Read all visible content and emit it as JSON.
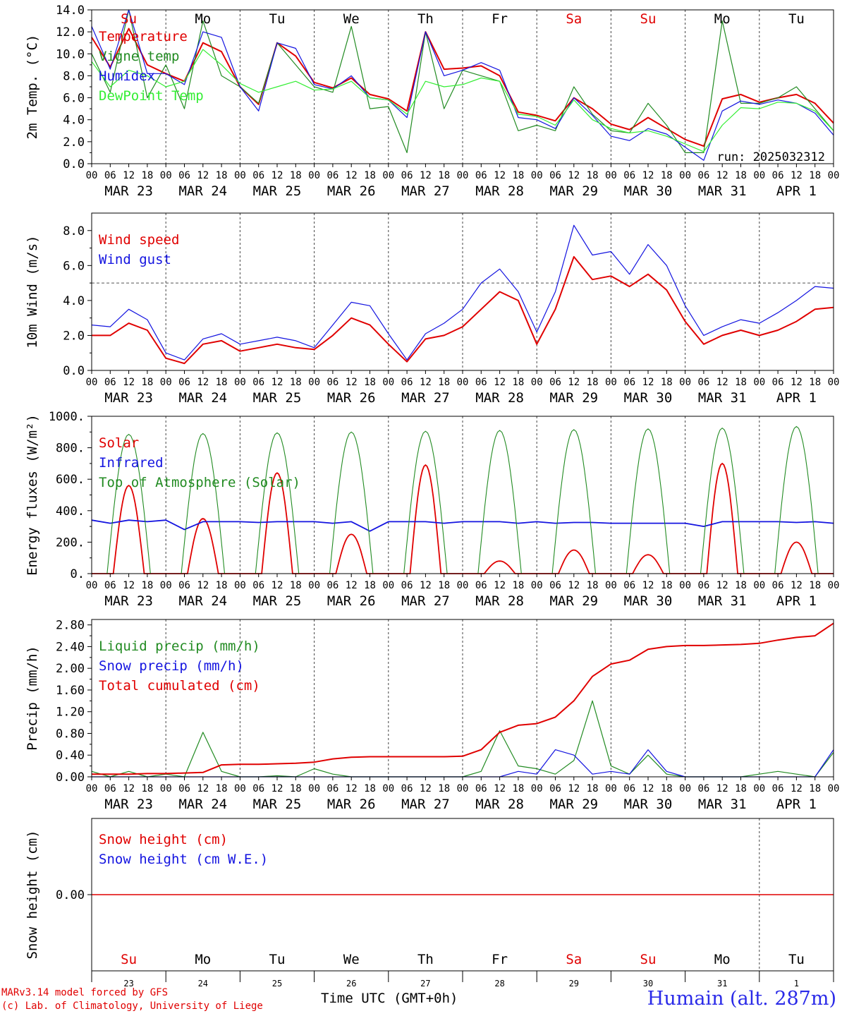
{
  "colors": {
    "red": "#e00000",
    "green": "#228b22",
    "blue": "#1414e0",
    "lightgreen": "#33ee33",
    "black": "#000000",
    "dayblack": "#000000"
  },
  "x_axis": {
    "tick_labels": [
      "00",
      "06",
      "12",
      "18",
      "00",
      "06",
      "12",
      "18",
      "00",
      "06",
      "12",
      "18",
      "00",
      "06",
      "12",
      "18",
      "00",
      "06",
      "12",
      "18",
      "00",
      "06",
      "12",
      "18",
      "00",
      "06",
      "12",
      "18",
      "00",
      "06",
      "12",
      "18",
      "00",
      "06",
      "12",
      "18",
      "00",
      "06",
      "12",
      "18",
      "00"
    ],
    "date_labels": [
      "MAR 23",
      "MAR 24",
      "MAR 25",
      "MAR 26",
      "MAR 27",
      "MAR 28",
      "MAR 29",
      "MAR 30",
      "MAR 31",
      "APR  1"
    ]
  },
  "weekdays": [
    {
      "label": "Su",
      "color": "red"
    },
    {
      "label": "Mo",
      "color": "black"
    },
    {
      "label": "Tu",
      "color": "black"
    },
    {
      "label": "We",
      "color": "black"
    },
    {
      "label": "Th",
      "color": "black"
    },
    {
      "label": "Fr",
      "color": "black"
    },
    {
      "label": "Sa",
      "color": "red"
    },
    {
      "label": "Su",
      "color": "red"
    },
    {
      "label": "Mo",
      "color": "black"
    },
    {
      "label": "Tu",
      "color": "black"
    }
  ],
  "day_numbers": [
    "23",
    "24",
    "25",
    "26",
    "27",
    "28",
    "29",
    "30",
    "31",
    "1"
  ],
  "chart_data": [
    {
      "type": "line",
      "ylabel": "2m Temp. (°C)",
      "ylim": [
        0,
        14
      ],
      "yticks": [
        "0.0",
        "2.0",
        "4.0",
        "6.0",
        "8.0",
        "10.0",
        "12.0",
        "14.0"
      ],
      "ref_line": 0,
      "annotation": "run: 2025032312",
      "x": [
        0,
        6,
        12,
        18,
        24,
        30,
        36,
        42,
        48,
        54,
        60,
        66,
        72,
        78,
        84,
        90,
        96,
        102,
        108,
        114,
        120,
        126,
        132,
        138,
        144,
        150,
        156,
        162,
        168,
        174,
        180,
        186,
        192,
        198,
        204,
        210,
        216,
        222,
        228,
        234,
        240
      ],
      "series": [
        {
          "name": "Temperature",
          "color": "red",
          "values": [
            11.5,
            8.8,
            12.3,
            9.0,
            8.2,
            7.5,
            11.0,
            10.2,
            7.0,
            5.4,
            11.0,
            9.8,
            7.4,
            6.9,
            7.8,
            6.3,
            5.9,
            4.8,
            12.0,
            8.6,
            8.7,
            8.9,
            8.0,
            4.7,
            4.4,
            3.9,
            6.0,
            5.0,
            3.6,
            3.1,
            4.2,
            3.2,
            2.2,
            1.6,
            5.9,
            6.3,
            5.6,
            6.0,
            6.3,
            5.5,
            3.7
          ]
        },
        {
          "name": "Vigne temp",
          "color": "green",
          "values": [
            10.0,
            6.5,
            14.0,
            6.0,
            9.0,
            5.0,
            13.0,
            8.0,
            7.0,
            5.5,
            11.0,
            9.0,
            7.0,
            6.5,
            12.5,
            5.0,
            5.2,
            1.0,
            12.0,
            5.0,
            8.5,
            8.0,
            7.5,
            3.0,
            3.5,
            3.0,
            7.0,
            4.5,
            3.0,
            2.8,
            5.5,
            3.5,
            1.0,
            1.0,
            13.0,
            5.5,
            5.5,
            6.0,
            7.0,
            5.0,
            3.0
          ]
        },
        {
          "name": "Humidex",
          "color": "blue",
          "values": [
            12.5,
            8.6,
            14.0,
            8.2,
            8.2,
            7.2,
            12.0,
            11.5,
            7.0,
            4.8,
            11.0,
            10.5,
            7.2,
            6.8,
            8.0,
            6.0,
            5.8,
            4.2,
            12.0,
            8.0,
            8.5,
            9.2,
            8.5,
            4.2,
            4.0,
            3.2,
            6.0,
            4.4,
            2.5,
            2.1,
            3.2,
            2.7,
            1.5,
            0.3,
            4.8,
            5.7,
            5.4,
            5.8,
            5.5,
            4.6,
            2.6
          ]
        },
        {
          "name": "DewPoint Temp",
          "color": "lightgreen",
          "values": [
            9.3,
            7.0,
            8.5,
            8.0,
            7.0,
            7.5,
            10.4,
            9.0,
            7.3,
            6.5,
            7.0,
            7.5,
            6.7,
            6.8,
            7.5,
            6.0,
            5.8,
            4.5,
            7.5,
            7.0,
            7.2,
            7.8,
            7.5,
            4.5,
            4.3,
            3.5,
            5.8,
            4.0,
            3.2,
            2.8,
            3.0,
            2.5,
            1.8,
            1.1,
            3.5,
            5.1,
            5.0,
            5.6,
            5.5,
            4.8,
            3.0
          ]
        }
      ]
    },
    {
      "type": "line",
      "ylabel": "10m Wind (m/s)",
      "ylim": [
        0,
        9
      ],
      "yticks": [
        "0.0",
        "2.0",
        "4.0",
        "6.0",
        "8.0"
      ],
      "ref_line": 5,
      "x": [
        0,
        6,
        12,
        18,
        24,
        30,
        36,
        42,
        48,
        54,
        60,
        66,
        72,
        78,
        84,
        90,
        96,
        102,
        108,
        114,
        120,
        126,
        132,
        138,
        144,
        150,
        156,
        162,
        168,
        174,
        180,
        186,
        192,
        198,
        204,
        210,
        216,
        222,
        228,
        234,
        240
      ],
      "series": [
        {
          "name": "Wind speed",
          "color": "red",
          "values": [
            2.0,
            2.0,
            2.7,
            2.3,
            0.7,
            0.4,
            1.5,
            1.7,
            1.1,
            1.3,
            1.5,
            1.3,
            1.2,
            2.0,
            3.0,
            2.6,
            1.5,
            0.5,
            1.8,
            2.0,
            2.5,
            3.5,
            4.5,
            4.0,
            1.5,
            3.5,
            6.5,
            5.2,
            5.4,
            4.8,
            5.5,
            4.6,
            2.8,
            1.5,
            2.0,
            2.3,
            2.0,
            2.3,
            2.8,
            3.5,
            3.6
          ]
        },
        {
          "name": "Wind gust",
          "color": "blue",
          "values": [
            2.6,
            2.5,
            3.5,
            2.9,
            1.0,
            0.6,
            1.8,
            2.1,
            1.5,
            1.7,
            1.9,
            1.7,
            1.3,
            2.6,
            3.9,
            3.7,
            2.1,
            0.6,
            2.1,
            2.7,
            3.5,
            5.0,
            5.8,
            4.5,
            2.2,
            4.5,
            8.3,
            6.6,
            6.8,
            5.5,
            7.2,
            6.0,
            3.7,
            2.0,
            2.5,
            2.9,
            2.7,
            3.3,
            4.0,
            4.8,
            4.7
          ]
        }
      ]
    },
    {
      "type": "line",
      "ylabel": "Energy fluxes (W/m²)",
      "ylim": [
        0,
        1000
      ],
      "yticks": [
        "0.",
        "200.",
        "400.",
        "600.",
        "800.",
        "1000."
      ],
      "series": [
        {
          "name": "Solar",
          "color": "red",
          "peaks": [
            560,
            350,
            640,
            250,
            690,
            80,
            150,
            120,
            700,
            200
          ]
        },
        {
          "name": "Infrared",
          "color": "blue",
          "values": [
            340,
            320,
            340,
            330,
            340,
            280,
            330,
            330,
            330,
            325,
            330,
            330,
            330,
            320,
            330,
            270,
            330,
            330,
            330,
            320,
            330,
            330,
            330,
            320,
            330,
            320,
            325,
            325,
            320,
            320,
            320,
            320,
            320,
            300,
            330,
            330,
            330,
            330,
            325,
            330,
            320
          ]
        },
        {
          "name": "Top of Atmosphere (Solar)",
          "color": "green",
          "peaks": [
            885,
            890,
            895,
            900,
            905,
            910,
            915,
            920,
            925,
            935
          ]
        }
      ]
    },
    {
      "type": "line",
      "ylabel": "Precip (mm/h)",
      "ylim": [
        0,
        2.9
      ],
      "yticks": [
        "0.00",
        "0.40",
        "0.80",
        "1.20",
        "1.60",
        "2.00",
        "2.40",
        "2.80"
      ],
      "x": [
        0,
        6,
        12,
        18,
        24,
        30,
        36,
        42,
        48,
        54,
        60,
        66,
        72,
        78,
        84,
        90,
        96,
        102,
        108,
        114,
        120,
        126,
        132,
        138,
        144,
        150,
        156,
        162,
        168,
        174,
        180,
        186,
        192,
        198,
        204,
        210,
        216,
        222,
        228,
        234,
        240
      ],
      "series": [
        {
          "name": "Liquid precip (mm/h)",
          "color": "green",
          "values": [
            0.1,
            0,
            0.1,
            0,
            0.05,
            0,
            0.82,
            0.1,
            0,
            0,
            0.02,
            0,
            0.15,
            0.05,
            0,
            0,
            0,
            0,
            0,
            0,
            0,
            0.1,
            0.85,
            0.2,
            0.15,
            0.05,
            0.3,
            1.4,
            0.2,
            0.05,
            0.4,
            0.05,
            0,
            0,
            0,
            0,
            0.05,
            0.1,
            0.05,
            0,
            0.45
          ]
        },
        {
          "name": "Snow precip (mm/h)",
          "color": "blue",
          "values": [
            0,
            0,
            0,
            0,
            0,
            0,
            0,
            0,
            0,
            0,
            0,
            0,
            0,
            0,
            0,
            0,
            0,
            0,
            0,
            0,
            0,
            0,
            0,
            0.1,
            0.05,
            0.5,
            0.4,
            0.05,
            0.1,
            0.05,
            0.5,
            0.1,
            0,
            0,
            0,
            0,
            0,
            0,
            0,
            0,
            0.5
          ]
        },
        {
          "name": "Total cumulated (cm)",
          "color": "red",
          "values": [
            0.05,
            0.05,
            0.05,
            0.06,
            0.06,
            0.07,
            0.08,
            0.22,
            0.23,
            0.23,
            0.24,
            0.25,
            0.27,
            0.33,
            0.36,
            0.37,
            0.37,
            0.37,
            0.37,
            0.37,
            0.38,
            0.5,
            0.82,
            0.95,
            0.98,
            1.1,
            1.4,
            1.85,
            2.08,
            2.15,
            2.35,
            2.4,
            2.42,
            2.42,
            2.43,
            2.44,
            2.46,
            2.52,
            2.57,
            2.6,
            2.83
          ]
        }
      ]
    },
    {
      "type": "line",
      "ylabel": "Snow height (cm)",
      "yticks": [
        "0.00"
      ],
      "series": [
        {
          "name": "Snow height (cm)",
          "color": "red",
          "values": [
            0,
            0
          ]
        },
        {
          "name": "Snow height (cm W.E.)",
          "color": "blue",
          "values": []
        }
      ]
    }
  ],
  "footer": {
    "credit_line1": "MARv3.14 model forced by GFS",
    "credit_line2": "(c) Lab. of Climatology, University of Liege",
    "xlabel": "Time UTC (GMT+0h)",
    "station": "Humain (alt. 287m)"
  }
}
